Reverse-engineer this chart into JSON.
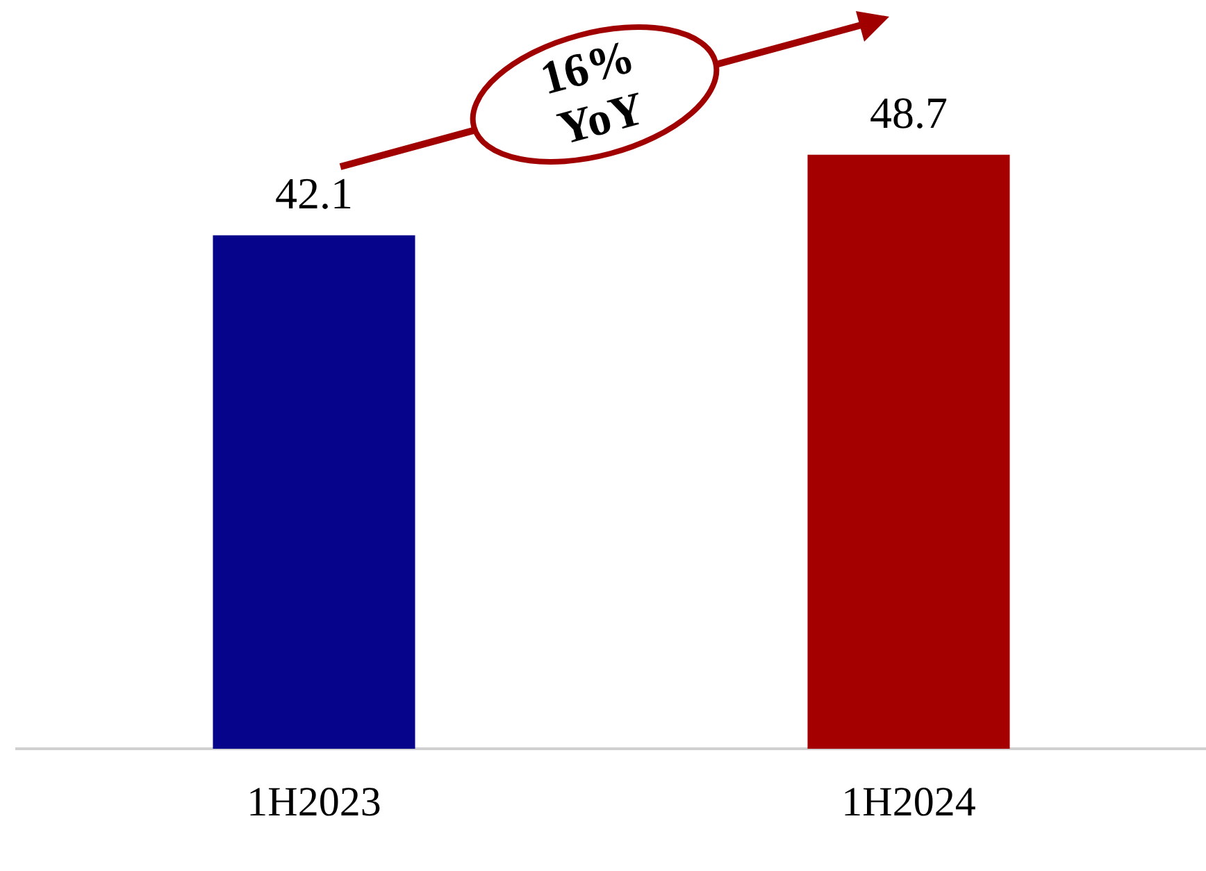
{
  "chart_data": {
    "type": "bar",
    "categories": [
      "1H2023",
      "1H2024"
    ],
    "values": [
      42.1,
      48.7
    ],
    "colors": [
      "#06048a",
      "#a40000"
    ],
    "data_labels": true,
    "grid": false,
    "legend": false,
    "tick_labels": "x",
    "annotations": [
      "16% YoY"
    ]
  }
}
